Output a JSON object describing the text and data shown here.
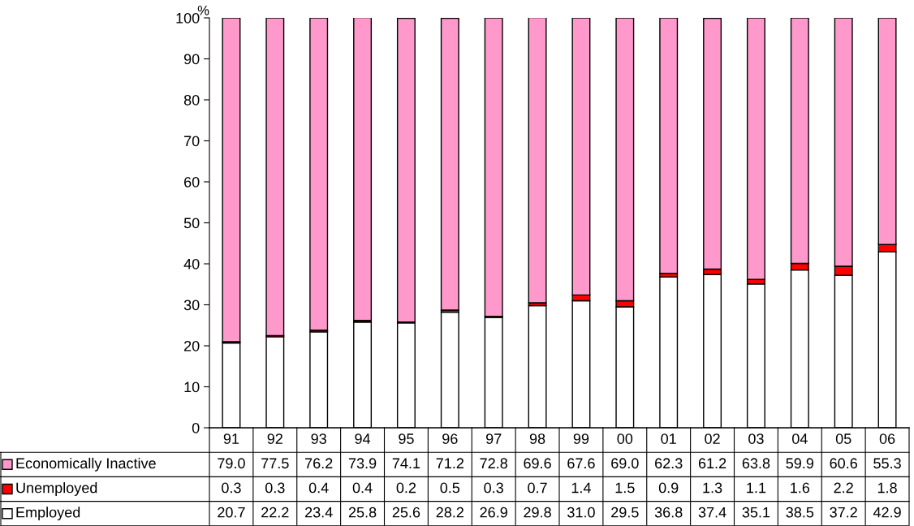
{
  "chart_data": {
    "type": "bar",
    "stacked": true,
    "ylabel": "%",
    "categories": [
      "91",
      "92",
      "93",
      "94",
      "95",
      "96",
      "97",
      "98",
      "99",
      "00",
      "01",
      "02",
      "03",
      "04",
      "05",
      "06"
    ],
    "series": [
      {
        "name": "Employed",
        "color": "#ffffff",
        "values": [
          20.7,
          22.2,
          23.4,
          25.8,
          25.6,
          28.2,
          26.9,
          29.8,
          31.0,
          29.5,
          36.8,
          37.4,
          35.1,
          38.5,
          37.2,
          42.9
        ],
        "value_labels": [
          "20.7",
          "22.2",
          "23.4",
          "25.8",
          "25.6",
          "28.2",
          "26.9",
          "29.8",
          "31.0",
          "29.5",
          "36.8",
          "37.4",
          "35.1",
          "38.5",
          "37.2",
          "42.9"
        ]
      },
      {
        "name": "Unemployed",
        "color": "#ff0000",
        "values": [
          0.3,
          0.3,
          0.4,
          0.4,
          0.2,
          0.5,
          0.3,
          0.7,
          1.4,
          1.5,
          0.9,
          1.3,
          1.1,
          1.6,
          2.2,
          1.8
        ],
        "value_labels": [
          "0.3",
          "0.3",
          "0.4",
          "0.4",
          "0.2",
          "0.5",
          "0.3",
          "0.7",
          "1.4",
          "1.5",
          "0.9",
          "1.3",
          "1.1",
          "1.6",
          "2.2",
          "1.8"
        ]
      },
      {
        "name": "Economically Inactive",
        "color": "#ff99cc",
        "values": [
          79.0,
          77.5,
          76.2,
          73.9,
          74.1,
          71.2,
          72.8,
          69.6,
          67.6,
          69.0,
          62.3,
          61.2,
          63.8,
          59.9,
          60.6,
          55.3
        ],
        "value_labels": [
          "79.0",
          "77.5",
          "76.2",
          "73.9",
          "74.1",
          "71.2",
          "72.8",
          "69.6",
          "67.6",
          "69.0",
          "62.3",
          "61.2",
          "63.8",
          "59.9",
          "60.6",
          "55.3"
        ]
      }
    ],
    "ylim": [
      0,
      100
    ],
    "yticks": [
      0,
      10,
      20,
      30,
      40,
      50,
      60,
      70,
      80,
      90,
      100
    ],
    "grid": false,
    "legend": "bottom"
  }
}
